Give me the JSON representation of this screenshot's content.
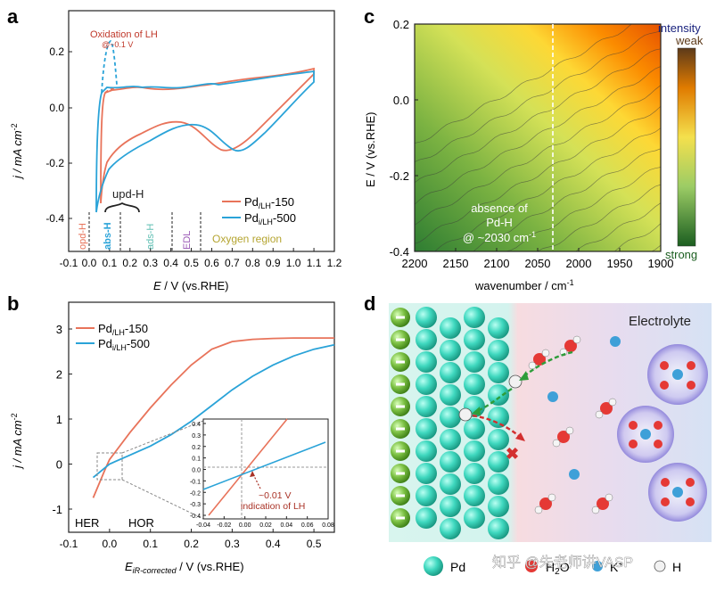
{
  "panel_labels": {
    "a": "a",
    "b": "b",
    "c": "c",
    "d": "d"
  },
  "colors": {
    "red": "#e8735a",
    "blue": "#2aa3d8",
    "black": "#222222",
    "olive": "#b5a531",
    "purple": "#9b59b6",
    "teal": "#5fbfb3"
  },
  "panel_a": {
    "xlabel_pre": "E",
    "xlabel_post": " / V (vs.RHE)",
    "ylabel": "j / mA cm",
    "ylabel_sup": "-2",
    "peak_label": "Oxidation of LH",
    "peak_sub": "@~0.1 V",
    "upd_label": "upd-H",
    "region_opd": "opd-H",
    "region_abs": "abs-H",
    "region_ads": "ads-H",
    "region_edl": "EDL",
    "region_oxygen": "Oxygen region",
    "legend": [
      {
        "base": "Pd",
        "sub": "/LH",
        "suffix": "-150"
      },
      {
        "base": "Pd",
        "sub": "i/LH",
        "suffix": "-500"
      }
    ]
  },
  "panel_b": {
    "xlabel_pre": "E",
    "xlabel_sub": "iR-corrected",
    "xlabel_post": " / V (vs.RHE)",
    "ylabel": "j / mA cm",
    "ylabel_sup": "-2",
    "her": "HER",
    "hor": "HOR",
    "inset_note1": "~0.01 V",
    "inset_note2": "indication of LH",
    "legend": [
      {
        "base": "Pd",
        "sub": "/LH",
        "suffix": "-150"
      },
      {
        "base": "Pd",
        "sub": "i/LH",
        "suffix": "-500"
      }
    ]
  },
  "panel_c": {
    "xlabel": "wavenumber / cm",
    "xlabel_sup": "-1",
    "ylabel": "E / V (vs.RHE)",
    "cb_intensity": "intensity",
    "cb_weak": "weak",
    "cb_strong": "strong",
    "annotation": [
      "absence of",
      "Pd-H",
      "@ ~2030 cm"
    ],
    "annotation_sup": "-1"
  },
  "panel_d": {
    "electrolyte": "Electrolyte",
    "legend_pd": "Pd",
    "legend_h2o": "H",
    "legend_h2o_sub": "2",
    "legend_h2o_tail": "O",
    "legend_k": "K",
    "legend_k_sup": "+",
    "legend_h": "H",
    "watermark": "知乎 @朱老师讲VASP"
  },
  "chart_data": [
    {
      "type": "line",
      "title": "a",
      "xlabel": "E / V (vs.RHE)",
      "ylabel": "j / mA cm-2",
      "xlim": [
        -0.1,
        1.2
      ],
      "ylim": [
        -0.45,
        0.28
      ],
      "xticks": [
        "-0.1",
        "0.0",
        "0.1",
        "0.2",
        "0.3",
        "0.4",
        "0.5",
        "0.6",
        "0.7",
        "0.8",
        "0.9",
        "1.0",
        "1.1",
        "1.2"
      ],
      "yticks": [
        "-0.4",
        "-0.2",
        "0.0",
        "0.2"
      ],
      "series": [
        {
          "name": "Pd/LH-150",
          "x_anodic": [
            0.05,
            0.08,
            0.12,
            0.2,
            0.3,
            0.4,
            0.5,
            0.6,
            0.7,
            0.8,
            0.9,
            1.0,
            1.1
          ],
          "y_anodic": [
            -0.35,
            0.02,
            0.06,
            0.06,
            0.07,
            0.07,
            0.07,
            0.08,
            0.08,
            0.09,
            0.1,
            0.12,
            0.14
          ],
          "x_cathodic": [
            1.1,
            1.0,
            0.9,
            0.8,
            0.7,
            0.6,
            0.5,
            0.4,
            0.3,
            0.2,
            0.12,
            0.08,
            0.05
          ],
          "y_cathodic": [
            0.13,
            0.08,
            0.0,
            -0.08,
            -0.16,
            -0.1,
            -0.05,
            -0.06,
            -0.09,
            -0.13,
            -0.18,
            -0.25,
            -0.35
          ]
        },
        {
          "name": "Pdi/LH-500",
          "x_anodic": [
            0.04,
            0.07,
            0.1,
            0.12,
            0.2,
            0.3,
            0.4,
            0.5,
            0.6,
            0.7,
            0.8,
            0.9,
            1.0,
            1.1
          ],
          "y_anodic": [
            -0.38,
            0.0,
            0.23,
            0.09,
            0.06,
            0.08,
            0.06,
            0.05,
            0.07,
            0.08,
            0.09,
            0.1,
            0.11,
            0.12
          ],
          "x_cathodic": [
            1.1,
            1.0,
            0.9,
            0.8,
            0.7,
            0.6,
            0.5,
            0.4,
            0.3,
            0.2,
            0.12,
            0.08,
            0.04
          ],
          "y_cathodic": [
            0.12,
            0.06,
            -0.02,
            -0.08,
            -0.15,
            -0.08,
            -0.04,
            -0.05,
            -0.08,
            -0.1,
            -0.14,
            -0.22,
            -0.38
          ]
        }
      ]
    },
    {
      "type": "line",
      "title": "b",
      "xlabel": "E iR-corrected / V (vs.RHE)",
      "ylabel": "j / mA cm-2",
      "xlim": [
        -0.1,
        0.55
      ],
      "ylim": [
        -1.2,
        3.2
      ],
      "xticks": [
        "-0.1",
        "0.0",
        "0.1",
        "0.2",
        "0.3",
        "0.4",
        "0.5"
      ],
      "yticks": [
        "-1",
        "0",
        "1",
        "2",
        "3"
      ],
      "series": [
        {
          "name": "Pd/LH-150",
          "x": [
            -0.04,
            -0.01,
            0.0,
            0.05,
            0.1,
            0.15,
            0.2,
            0.25,
            0.3,
            0.35,
            0.4,
            0.45,
            0.5,
            0.55
          ],
          "y": [
            -0.75,
            -0.1,
            0.1,
            0.7,
            1.25,
            1.75,
            2.2,
            2.55,
            2.72,
            2.77,
            2.79,
            2.8,
            2.8,
            2.8
          ]
        },
        {
          "name": "Pdi/LH-500",
          "x": [
            -0.04,
            0.0,
            0.05,
            0.1,
            0.15,
            0.2,
            0.25,
            0.3,
            0.35,
            0.4,
            0.45,
            0.5,
            0.55
          ],
          "y": [
            -0.3,
            0.0,
            0.2,
            0.4,
            0.65,
            0.95,
            1.3,
            1.65,
            1.95,
            2.2,
            2.4,
            2.55,
            2.65
          ]
        }
      ],
      "inset": {
        "xlim": [
          -0.04,
          0.08
        ],
        "ylim": [
          -0.4,
          0.4
        ],
        "xticks": [
          "-0.04",
          "-0.02",
          "0.00",
          "0.02",
          "0.04",
          "0.06",
          "0.08"
        ],
        "yticks": [
          "0.4",
          "0.3",
          "0.2",
          "0.1",
          "0.0",
          "-0.1",
          "-0.2",
          "-0.3",
          "-0.4"
        ]
      }
    },
    {
      "type": "heatmap",
      "title": "c",
      "xlabel": "wavenumber / cm-1",
      "ylabel": "E / V (vs.RHE)",
      "xlim": [
        2200,
        1900
      ],
      "ylim": [
        -0.4,
        0.2
      ],
      "xticks": [
        "2200",
        "2150",
        "2100",
        "2050",
        "2000",
        "1950",
        "1900"
      ],
      "yticks": [
        "-0.4",
        "-0.2",
        "0.0",
        "0.2"
      ],
      "marker_x": 2030,
      "colorbar": [
        "intensity weak",
        "strong"
      ]
    }
  ]
}
